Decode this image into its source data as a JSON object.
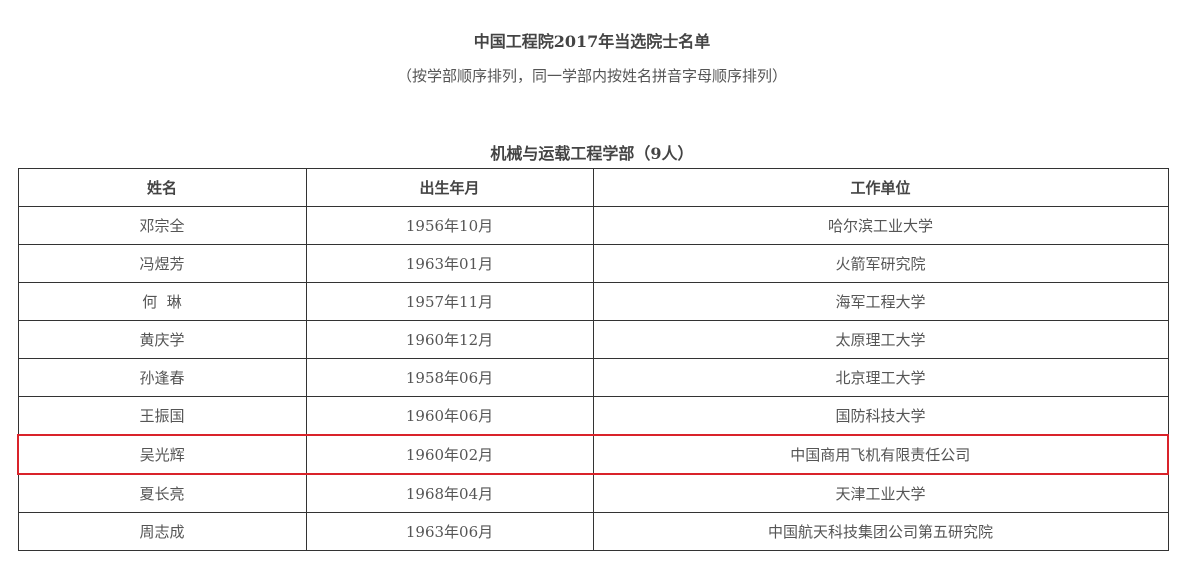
{
  "document": {
    "title": "中国工程院2017年当选院士名单",
    "subtitle": "（按学部顺序排列，同一学部内按姓名拼音字母顺序排列）",
    "department": "机械与运载工程学部（9人）",
    "highlight_color": "#d9232a",
    "highlighted_row": 6
  },
  "table": {
    "headers": [
      "姓名",
      "出生年月",
      "工作单位"
    ],
    "rows": [
      [
        "邓宗全",
        "1956年10月",
        "哈尔滨工业大学"
      ],
      [
        "冯煜芳",
        "1963年01月",
        "火箭军研究院"
      ],
      [
        "何  琳",
        "1957年11月",
        "海军工程大学"
      ],
      [
        "黄庆学",
        "1960年12月",
        "太原理工大学"
      ],
      [
        "孙逢春",
        "1958年06月",
        "北京理工大学"
      ],
      [
        "王振国",
        "1960年06月",
        "国防科技大学"
      ],
      [
        "吴光辉",
        "1960年02月",
        "中国商用飞机有限责任公司"
      ],
      [
        "夏长亮",
        "1968年04月",
        "天津工业大学"
      ],
      [
        "周志成",
        "1963年06月",
        "中国航天科技集团公司第五研究院"
      ]
    ]
  }
}
